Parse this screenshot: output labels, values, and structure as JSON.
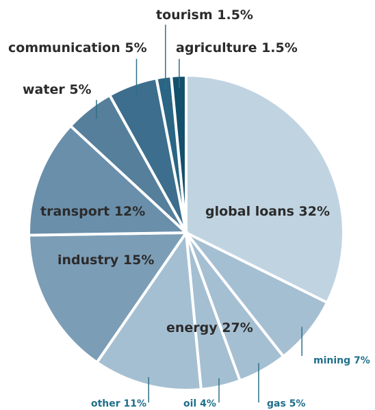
{
  "chart_data": {
    "type": "pie",
    "title": "",
    "slices": [
      {
        "label": "global loans 32%",
        "value": 32,
        "color": "#c0d3e1",
        "group": "main"
      },
      {
        "label": "mining 7%",
        "value": 7,
        "color": "#a5bfd2",
        "group": "energy"
      },
      {
        "label": "gas 5%",
        "value": 5,
        "color": "#a5bfd2",
        "group": "energy"
      },
      {
        "label": "oil 4%",
        "value": 4,
        "color": "#a5bfd2",
        "group": "energy"
      },
      {
        "label": "other 11%",
        "value": 11,
        "color": "#a5bfd2",
        "group": "energy"
      },
      {
        "label": "industry 15%",
        "value": 15,
        "color": "#7c9db6",
        "group": "main"
      },
      {
        "label": "transport 12%",
        "value": 12,
        "color": "#6a8fab",
        "group": "main"
      },
      {
        "label": "water 5%",
        "value": 5,
        "color": "#567f9c",
        "group": "main"
      },
      {
        "label": "communication 5%",
        "value": 5,
        "color": "#3d6e8d",
        "group": "main"
      },
      {
        "label": "tourism 1.5%",
        "value": 1.5,
        "color": "#2a6584",
        "group": "main"
      },
      {
        "label": "agriculture 1.5%",
        "value": 1.5,
        "color": "#14506c",
        "group": "main"
      }
    ],
    "group_labels": [
      {
        "label": "energy 27%",
        "value": 27
      }
    ]
  }
}
